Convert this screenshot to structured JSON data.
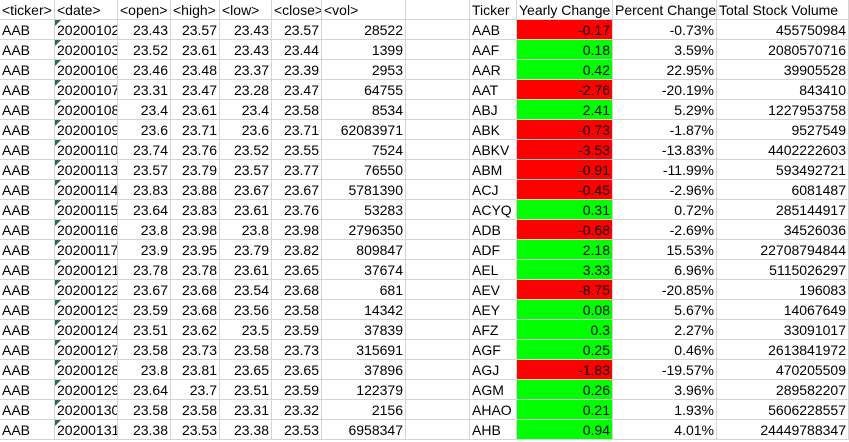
{
  "sheet": {
    "headers": [
      "<ticker>",
      "<date>",
      "<open>",
      "<high>",
      "<low>",
      "<close>",
      "<vol>",
      "",
      "Ticker",
      "Yearly Change",
      "Percent Change",
      "Total Stock Volume"
    ],
    "colors": {
      "positive": "#00ff00",
      "negative": "#ff0000",
      "grid": "#d4d4d4",
      "text_marker": "#217346"
    },
    "rows": [
      {
        "ticker": "AAB",
        "date": "20200102",
        "open": "23.43",
        "high": "23.57",
        "low": "23.43",
        "close": "23.57",
        "vol": "28522",
        "s_ticker": "AAB",
        "yearly": "-0.17",
        "percent": "-0.73%",
        "total": "455750984"
      },
      {
        "ticker": "AAB",
        "date": "20200103",
        "open": "23.52",
        "high": "23.61",
        "low": "23.43",
        "close": "23.44",
        "vol": "1399",
        "s_ticker": "AAF",
        "yearly": "0.18",
        "percent": "3.59%",
        "total": "2080570716"
      },
      {
        "ticker": "AAB",
        "date": "20200106",
        "open": "23.46",
        "high": "23.48",
        "low": "23.37",
        "close": "23.39",
        "vol": "2953",
        "s_ticker": "AAR",
        "yearly": "0.42",
        "percent": "22.95%",
        "total": "39905528"
      },
      {
        "ticker": "AAB",
        "date": "20200107",
        "open": "23.31",
        "high": "23.47",
        "low": "23.28",
        "close": "23.47",
        "vol": "64755",
        "s_ticker": "AAT",
        "yearly": "-2.76",
        "percent": "-20.19%",
        "total": "843410"
      },
      {
        "ticker": "AAB",
        "date": "20200108",
        "open": "23.4",
        "high": "23.61",
        "low": "23.4",
        "close": "23.58",
        "vol": "8534",
        "s_ticker": "ABJ",
        "yearly": "2.41",
        "percent": "5.29%",
        "total": "1227953758"
      },
      {
        "ticker": "AAB",
        "date": "20200109",
        "open": "23.6",
        "high": "23.71",
        "low": "23.6",
        "close": "23.71",
        "vol": "62083971",
        "s_ticker": "ABK",
        "yearly": "-0.73",
        "percent": "-1.87%",
        "total": "9527549"
      },
      {
        "ticker": "AAB",
        "date": "20200110",
        "open": "23.74",
        "high": "23.76",
        "low": "23.52",
        "close": "23.55",
        "vol": "7524",
        "s_ticker": "ABKV",
        "yearly": "-3.53",
        "percent": "-13.83%",
        "total": "4402222603"
      },
      {
        "ticker": "AAB",
        "date": "20200113",
        "open": "23.57",
        "high": "23.79",
        "low": "23.57",
        "close": "23.77",
        "vol": "76550",
        "s_ticker": "ABM",
        "yearly": "-0.91",
        "percent": "-11.99%",
        "total": "593492721"
      },
      {
        "ticker": "AAB",
        "date": "20200114",
        "open": "23.83",
        "high": "23.88",
        "low": "23.67",
        "close": "23.67",
        "vol": "5781390",
        "s_ticker": "ACJ",
        "yearly": "-0.45",
        "percent": "-2.96%",
        "total": "6081487"
      },
      {
        "ticker": "AAB",
        "date": "20200115",
        "open": "23.64",
        "high": "23.83",
        "low": "23.61",
        "close": "23.76",
        "vol": "53283",
        "s_ticker": "ACYQ",
        "yearly": "0.31",
        "percent": "0.72%",
        "total": "285144917"
      },
      {
        "ticker": "AAB",
        "date": "20200116",
        "open": "23.8",
        "high": "23.98",
        "low": "23.8",
        "close": "23.98",
        "vol": "2796350",
        "s_ticker": "ADB",
        "yearly": "-0.68",
        "percent": "-2.69%",
        "total": "34526036"
      },
      {
        "ticker": "AAB",
        "date": "20200117",
        "open": "23.9",
        "high": "23.95",
        "low": "23.79",
        "close": "23.82",
        "vol": "809847",
        "s_ticker": "ADF",
        "yearly": "2.18",
        "percent": "15.53%",
        "total": "22708794844"
      },
      {
        "ticker": "AAB",
        "date": "20200121",
        "open": "23.78",
        "high": "23.78",
        "low": "23.61",
        "close": "23.65",
        "vol": "37674",
        "s_ticker": "AEL",
        "yearly": "3.33",
        "percent": "6.96%",
        "total": "5115026297"
      },
      {
        "ticker": "AAB",
        "date": "20200122",
        "open": "23.67",
        "high": "23.68",
        "low": "23.54",
        "close": "23.68",
        "vol": "681",
        "s_ticker": "AEV",
        "yearly": "-8.75",
        "percent": "-20.85%",
        "total": "196083"
      },
      {
        "ticker": "AAB",
        "date": "20200123",
        "open": "23.59",
        "high": "23.68",
        "low": "23.56",
        "close": "23.58",
        "vol": "14342",
        "s_ticker": "AEY",
        "yearly": "0.08",
        "percent": "5.67%",
        "total": "14067649"
      },
      {
        "ticker": "AAB",
        "date": "20200124",
        "open": "23.51",
        "high": "23.62",
        "low": "23.5",
        "close": "23.59",
        "vol": "37839",
        "s_ticker": "AFZ",
        "yearly": "0.3",
        "percent": "2.27%",
        "total": "33091017"
      },
      {
        "ticker": "AAB",
        "date": "20200127",
        "open": "23.58",
        "high": "23.73",
        "low": "23.58",
        "close": "23.73",
        "vol": "315691",
        "s_ticker": "AGF",
        "yearly": "0.25",
        "percent": "0.46%",
        "total": "2613841972"
      },
      {
        "ticker": "AAB",
        "date": "20200128",
        "open": "23.8",
        "high": "23.81",
        "low": "23.65",
        "close": "23.65",
        "vol": "37896",
        "s_ticker": "AGJ",
        "yearly": "-1.83",
        "percent": "-19.57%",
        "total": "470205509"
      },
      {
        "ticker": "AAB",
        "date": "20200129",
        "open": "23.64",
        "high": "23.7",
        "low": "23.51",
        "close": "23.59",
        "vol": "122379",
        "s_ticker": "AGM",
        "yearly": "0.26",
        "percent": "3.96%",
        "total": "289582207"
      },
      {
        "ticker": "AAB",
        "date": "20200130",
        "open": "23.58",
        "high": "23.58",
        "low": "23.31",
        "close": "23.32",
        "vol": "2156",
        "s_ticker": "AHAO",
        "yearly": "0.21",
        "percent": "1.93%",
        "total": "5606228557"
      },
      {
        "ticker": "AAB",
        "date": "20200131",
        "open": "23.38",
        "high": "23.53",
        "low": "23.38",
        "close": "23.53",
        "vol": "6958347",
        "s_ticker": "AHB",
        "yearly": "0.94",
        "percent": "4.01%",
        "total": "24449788347"
      }
    ]
  }
}
